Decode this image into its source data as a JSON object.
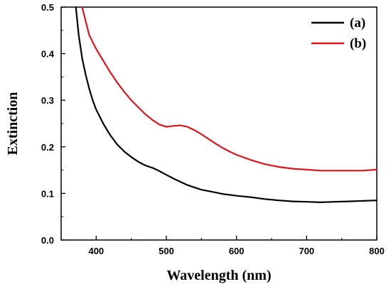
{
  "chart_data": {
    "type": "line",
    "xlabel": "Wavelength (nm)",
    "ylabel": "Extinction",
    "xlim": [
      350,
      800
    ],
    "ylim": [
      0.0,
      0.5
    ],
    "xticks": [
      400,
      500,
      600,
      700,
      800
    ],
    "yticks": [
      0.0,
      0.1,
      0.2,
      0.3,
      0.4,
      0.5
    ],
    "xtick_labels": [
      "400",
      "500",
      "600",
      "700",
      "800"
    ],
    "ytick_labels": [
      "0.0",
      "0.1",
      "0.2",
      "0.3",
      "0.4",
      "0.5"
    ],
    "legend_placement": "top-right",
    "grid": false,
    "series": [
      {
        "name": "(a)",
        "color": "#000000",
        "x": [
          371,
          375,
          380,
          385,
          390,
          395,
          400,
          410,
          420,
          430,
          440,
          450,
          460,
          470,
          480,
          490,
          500,
          510,
          520,
          530,
          540,
          550,
          560,
          570,
          580,
          590,
          600,
          620,
          640,
          660,
          680,
          700,
          720,
          740,
          760,
          780,
          800
        ],
        "values": [
          0.5,
          0.44,
          0.39,
          0.355,
          0.325,
          0.3,
          0.28,
          0.25,
          0.225,
          0.205,
          0.19,
          0.178,
          0.168,
          0.16,
          0.155,
          0.148,
          0.14,
          0.132,
          0.125,
          0.118,
          0.113,
          0.108,
          0.105,
          0.102,
          0.099,
          0.097,
          0.095,
          0.092,
          0.088,
          0.085,
          0.083,
          0.082,
          0.081,
          0.082,
          0.083,
          0.084,
          0.085
        ]
      },
      {
        "name": "(b)",
        "color": "#e0151b",
        "x": [
          380,
          385,
          390,
          400,
          410,
          420,
          430,
          440,
          450,
          460,
          470,
          480,
          490,
          500,
          510,
          520,
          530,
          540,
          550,
          560,
          570,
          580,
          590,
          600,
          620,
          640,
          660,
          680,
          700,
          720,
          740,
          760,
          780,
          800
        ],
        "values": [
          0.5,
          0.47,
          0.44,
          0.41,
          0.385,
          0.36,
          0.338,
          0.318,
          0.3,
          0.285,
          0.27,
          0.258,
          0.248,
          0.243,
          0.245,
          0.246,
          0.243,
          0.236,
          0.227,
          0.217,
          0.207,
          0.198,
          0.19,
          0.183,
          0.172,
          0.163,
          0.157,
          0.153,
          0.151,
          0.149,
          0.149,
          0.149,
          0.149,
          0.151
        ]
      }
    ]
  }
}
